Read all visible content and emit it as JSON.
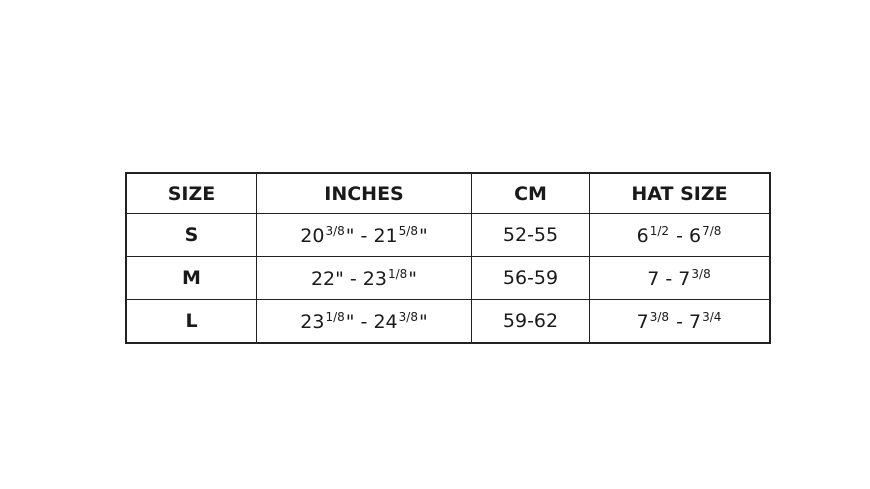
{
  "headers": [
    "SIZE",
    "INCHES",
    "CM",
    "HAT SIZE"
  ],
  "rows": [
    {
      "size": "S",
      "inches": [
        {
          "t": "20"
        },
        {
          "sup": "3/8"
        },
        {
          "t": "\" - 21"
        },
        {
          "sup": "5/8"
        },
        {
          "t": "\""
        }
      ],
      "cm": "52-55",
      "hat": [
        {
          "t": "6"
        },
        {
          "sup": "1/2"
        },
        {
          "t": " - 6"
        },
        {
          "sup": "7/8"
        }
      ]
    },
    {
      "size": "M",
      "inches": [
        {
          "t": "22\" - 23"
        },
        {
          "sup": "1/8"
        },
        {
          "t": "\""
        }
      ],
      "cm": "56-59",
      "hat": [
        {
          "t": "7 - 7"
        },
        {
          "sup": "3/8"
        }
      ]
    },
    {
      "size": "L",
      "inches": [
        {
          "t": "23"
        },
        {
          "sup": "1/8"
        },
        {
          "t": "\" - 24"
        },
        {
          "sup": "3/8"
        },
        {
          "t": "\""
        }
      ],
      "cm": "59-62",
      "hat": [
        {
          "t": "7"
        },
        {
          "sup": "3/8"
        },
        {
          "t": " - 7"
        },
        {
          "sup": "3/4"
        }
      ]
    }
  ]
}
